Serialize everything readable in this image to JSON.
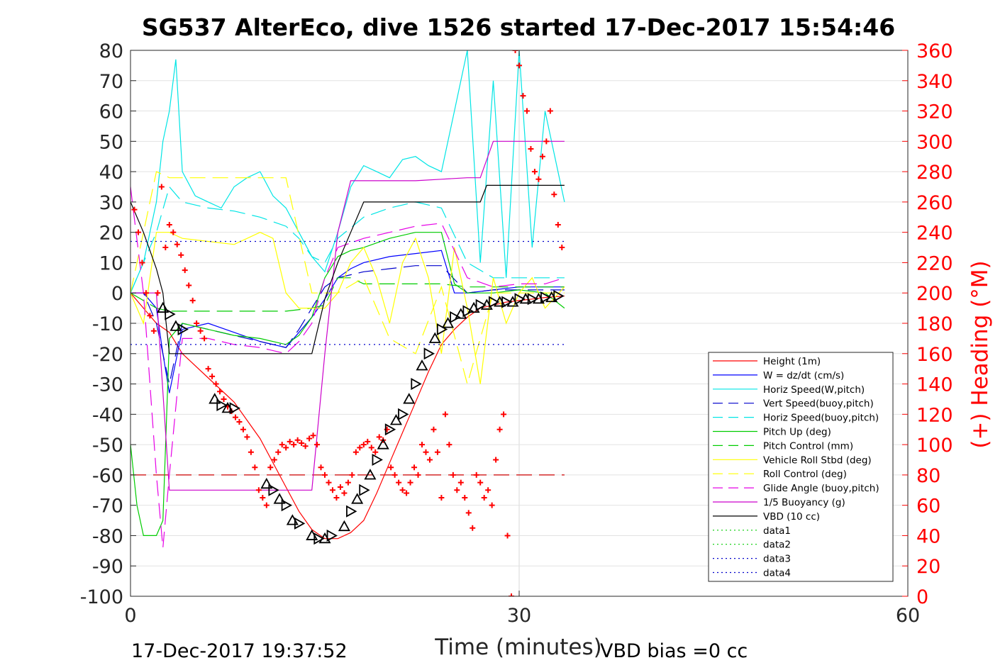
{
  "chart_data": {
    "type": "line",
    "title": "SG537 AlterEco, dive 1526 started 17-Dec-2017 15:54:46",
    "xlabel": "Time (minutes)",
    "ylabel_right": "(+) Heading (°M)",
    "xlim": [
      0,
      60
    ],
    "ylim": [
      -100,
      80
    ],
    "ylim_right": [
      0,
      360
    ],
    "x_ticks": [
      "0",
      "30",
      "60"
    ],
    "y_ticks": [
      "80",
      "70",
      "60",
      "50",
      "40",
      "30",
      "20",
      "10",
      "0",
      "-10",
      "-20",
      "-30",
      "-40",
      "-50",
      "-60",
      "-70",
      "-80",
      "-90",
      "-100"
    ],
    "y_ticks_right": [
      "360",
      "340",
      "320",
      "300",
      "280",
      "260",
      "240",
      "220",
      "200",
      "180",
      "160",
      "140",
      "120",
      "100",
      "80",
      "60",
      "40",
      "20",
      "0"
    ],
    "grid": true,
    "legend_position": "lower-right",
    "footer_left": "17-Dec-2017 19:37:52",
    "footer_right": "VBD bias =0 cc",
    "series": [
      {
        "name": "Height (1m)",
        "color": "#ff0000",
        "dash": "solid",
        "x": [
          0,
          1,
          2,
          3,
          4,
          6,
          8,
          10,
          12,
          13,
          14,
          15,
          16,
          17,
          18,
          19,
          20,
          21,
          22,
          23,
          24,
          25,
          26,
          27,
          28,
          29,
          30,
          31,
          32,
          33.5
        ],
        "values": [
          0,
          -5,
          -10,
          -13,
          -20,
          -28,
          -36,
          -48,
          -64,
          -72,
          -78,
          -81,
          -81,
          -79,
          -75,
          -66,
          -56,
          -46,
          -36,
          -26,
          -17,
          -12,
          -8,
          -5,
          -4,
          -3,
          -2.5,
          -2,
          -1.5,
          -1
        ]
      },
      {
        "name": "W = dz/dt (cm/s)",
        "color": "#0000ff",
        "dash": "solid",
        "x": [
          0,
          1,
          2,
          2.5,
          3,
          4,
          6,
          8,
          10,
          12,
          13,
          14,
          15,
          16,
          17,
          18,
          20,
          22,
          24,
          25,
          26,
          28,
          30,
          32,
          33.5
        ],
        "values": [
          0,
          0,
          -5,
          -20,
          -33,
          -12,
          -10,
          -13,
          -16,
          -18,
          -13,
          -8,
          -2,
          5,
          8,
          10,
          12,
          13,
          14,
          0,
          0,
          1,
          2,
          2,
          2
        ]
      },
      {
        "name": "Horiz Speed(W,pitch)",
        "color": "#00e5e5",
        "dash": "solid",
        "x": [
          0,
          1,
          2,
          2.5,
          3,
          3.5,
          4,
          5,
          6,
          7,
          8,
          9,
          10,
          11,
          12,
          13,
          14,
          15,
          16,
          17,
          18,
          19,
          20,
          21,
          22,
          23,
          24,
          25,
          26,
          27,
          28,
          29,
          30,
          31,
          32,
          33.5
        ],
        "values": [
          0,
          10,
          30,
          50,
          60,
          77,
          40,
          32,
          30,
          28,
          35,
          38,
          40,
          32,
          28,
          20,
          12,
          7,
          20,
          35,
          42,
          40,
          38,
          44,
          45,
          42,
          40,
          60,
          80,
          10,
          70,
          5,
          80,
          15,
          60,
          30
        ]
      },
      {
        "name": "Vert Speed(buoy,pitch)",
        "color": "#0000cc",
        "dash": "dashed",
        "x": [
          0,
          1,
          2,
          3,
          4,
          6,
          8,
          10,
          12,
          13,
          14,
          15,
          16,
          18,
          20,
          22,
          24,
          26,
          28,
          30,
          32,
          33.5
        ],
        "values": [
          0,
          0,
          -10,
          -30,
          -10,
          -12,
          -14,
          -16,
          -18,
          -12,
          -5,
          2,
          5,
          7,
          8,
          9,
          9,
          0,
          1,
          1,
          1,
          1
        ]
      },
      {
        "name": "Horiz Speed(buoy,pitch)",
        "color": "#00e5e5",
        "dash": "dashed",
        "x": [
          0,
          2,
          3,
          4,
          6,
          8,
          10,
          12,
          13,
          14,
          15,
          16,
          18,
          20,
          22,
          24,
          26,
          28,
          30,
          32,
          33.5
        ],
        "values": [
          0,
          20,
          35,
          30,
          28,
          27,
          25,
          22,
          18,
          12,
          10,
          18,
          25,
          28,
          30,
          28,
          10,
          5,
          5,
          5,
          5
        ]
      },
      {
        "name": "Pitch Up (deg)",
        "color": "#00cc00",
        "dash": "solid",
        "x": [
          0,
          0.5,
          1,
          2,
          2.5,
          3,
          4,
          6,
          8,
          10,
          12,
          13,
          14,
          15,
          16,
          17,
          18,
          20,
          22,
          24,
          25,
          26,
          28,
          30,
          32,
          33.5
        ],
        "values": [
          -50,
          -70,
          -80,
          -80,
          -75,
          -15,
          -10,
          -12,
          -14,
          -15,
          -17,
          -14,
          -8,
          5,
          12,
          14,
          15,
          18,
          20,
          20,
          3,
          0,
          0,
          1,
          0,
          -5
        ]
      },
      {
        "name": "Pitch Control (mm)",
        "color": "#00cc00",
        "dash": "dashed",
        "x": [
          0,
          2,
          3,
          4,
          6,
          8,
          10,
          12,
          14,
          15,
          16,
          17,
          18,
          20,
          22,
          24,
          26,
          28,
          30,
          32,
          33.5
        ],
        "values": [
          0,
          -5,
          -6,
          -6,
          -6,
          -6,
          -6,
          -6,
          -5,
          -4,
          5,
          5,
          3,
          3,
          3,
          3,
          2,
          2,
          2,
          2,
          2
        ]
      },
      {
        "name": "Vehicle Roll Stbd (deg)",
        "color": "#ffff00",
        "dash": "solid",
        "x": [
          0,
          1,
          2,
          3,
          4,
          6,
          8,
          10,
          11,
          12,
          13,
          14,
          15,
          16,
          17,
          18,
          19,
          20,
          21,
          22,
          23,
          24,
          25,
          26,
          27,
          28,
          29,
          30,
          31,
          32,
          33.5
        ],
        "values": [
          0,
          -10,
          20,
          20,
          18,
          17,
          16,
          20,
          18,
          0,
          -5,
          -5,
          -5,
          0,
          10,
          15,
          5,
          -10,
          10,
          18,
          5,
          -20,
          15,
          -5,
          -30,
          5,
          -10,
          0,
          5,
          -5,
          2
        ]
      },
      {
        "name": "Roll Control (deg)",
        "color": "#ffff00",
        "dash": "dashed",
        "x": [
          0,
          1,
          2,
          3,
          4,
          6,
          8,
          10,
          12,
          14,
          16,
          18,
          20,
          22,
          24,
          26,
          28,
          30,
          32,
          33.5
        ],
        "values": [
          0,
          20,
          40,
          38,
          38,
          38,
          38,
          38,
          38,
          0,
          0,
          5,
          -15,
          -20,
          2,
          -30,
          0,
          0,
          0,
          0
        ]
      },
      {
        "name": "Glide Angle (buoy,pitch)",
        "color": "#e600e6",
        "dash": "dashed",
        "x": [
          0,
          1,
          2,
          2.5,
          3,
          4,
          6,
          8,
          10,
          12,
          13,
          14,
          15,
          16,
          18,
          20,
          22,
          24,
          26,
          28,
          30,
          32,
          33.5
        ],
        "values": [
          35,
          0,
          -60,
          -84,
          -60,
          -15,
          -15,
          -17,
          -18,
          -20,
          -16,
          -10,
          5,
          15,
          18,
          20,
          22,
          23,
          5,
          2,
          3,
          3,
          5
        ]
      },
      {
        "name": "1/5 Buoyancy (g)",
        "color": "#cc00cc",
        "dash": "solid",
        "x": [
          0,
          2,
          3,
          4,
          6,
          8,
          10,
          12,
          14,
          15,
          16,
          17,
          18,
          20,
          22,
          24,
          26,
          27,
          28,
          30,
          32,
          33.5
        ],
        "values": [
          0,
          0,
          -65,
          -65,
          -65,
          -65,
          -65,
          -65,
          -65,
          -20,
          20,
          37,
          37,
          37,
          37,
          37.5,
          38,
          38,
          50,
          50,
          50,
          50
        ]
      },
      {
        "name": "VBD (10 cc)",
        "color": "#000000",
        "dash": "solid",
        "x": [
          0,
          1,
          2,
          2.5,
          3,
          4,
          6,
          8,
          10,
          12,
          13,
          14,
          15,
          16,
          17,
          18,
          20,
          22,
          24,
          26,
          27,
          27.5,
          28,
          30,
          32,
          33.5
        ],
        "values": [
          30,
          20,
          8,
          0,
          -20,
          -20,
          -20,
          -20,
          -20,
          -20,
          -20,
          -20,
          -2,
          10,
          20,
          30,
          30,
          30,
          30,
          30,
          30,
          35.5,
          35.5,
          35.5,
          35.5,
          35.5
        ]
      },
      {
        "name": "data1",
        "color": "#00cc00",
        "dash": "dotted",
        "x": [],
        "values": []
      },
      {
        "name": "data2",
        "color": "#00cc00",
        "dash": "dotted",
        "x": [],
        "values": []
      },
      {
        "name": "data3",
        "color": "#0000cc",
        "dash": "dotted",
        "x": [
          0,
          33.5
        ],
        "values": [
          -17,
          -17
        ]
      },
      {
        "name": "data4",
        "color": "#0000cc",
        "dash": "dotted",
        "x": [
          0,
          33.5
        ],
        "values": [
          17,
          17
        ]
      }
    ],
    "reference_line": {
      "color": "#cc0000",
      "dash": "dashed",
      "x": [
        0,
        33.5
      ],
      "values": [
        -60,
        -60
      ]
    },
    "heading_points": {
      "color": "#ff0000",
      "marker": "+",
      "axis": "right",
      "x": [
        0.3,
        0.6,
        0.9,
        1.2,
        1.5,
        1.8,
        2.1,
        2.4,
        2.7,
        3.0,
        3.3,
        3.6,
        3.9,
        4.2,
        4.5,
        4.8,
        5.1,
        5.4,
        5.7,
        6.0,
        6.3,
        6.6,
        6.9,
        7.2,
        7.5,
        7.8,
        8.1,
        8.4,
        8.7,
        9.0,
        9.3,
        9.6,
        9.9,
        10.2,
        10.5,
        10.8,
        11.1,
        11.4,
        11.7,
        12.0,
        12.3,
        12.6,
        12.9,
        13.2,
        13.5,
        13.8,
        14.1,
        14.4,
        14.7,
        15.0,
        15.3,
        15.6,
        15.9,
        16.2,
        16.5,
        16.8,
        17.1,
        17.4,
        17.7,
        18.0,
        18.3,
        18.6,
        18.9,
        19.2,
        19.5,
        19.8,
        20.1,
        20.4,
        20.7,
        21.0,
        21.3,
        21.6,
        21.9,
        22.2,
        22.5,
        22.8,
        23.1,
        23.4,
        23.7,
        24.0,
        24.3,
        24.6,
        24.9,
        25.2,
        25.5,
        25.8,
        26.1,
        26.4,
        26.7,
        27.0,
        27.3,
        27.6,
        27.9,
        28.2,
        28.5,
        28.8,
        29.1,
        29.4,
        29.7,
        30.0,
        30.3,
        30.6,
        30.9,
        31.2,
        31.5,
        31.8,
        32.1,
        32.4,
        32.7,
        33.0,
        33.3
      ],
      "values": [
        255,
        240,
        220,
        200,
        185,
        175,
        200,
        270,
        230,
        245,
        240,
        232,
        225,
        215,
        205,
        195,
        180,
        175,
        170,
        150,
        145,
        140,
        135,
        130,
        125,
        122,
        118,
        115,
        110,
        105,
        95,
        85,
        70,
        65,
        60,
        85,
        90,
        95,
        100,
        98,
        102,
        100,
        103,
        101,
        99,
        104,
        106,
        100,
        85,
        80,
        75,
        70,
        65,
        72,
        68,
        75,
        80,
        95,
        98,
        100,
        102,
        98,
        95,
        105,
        103,
        110,
        85,
        80,
        75,
        70,
        68,
        75,
        85,
        80,
        100,
        95,
        90,
        110,
        95,
        65,
        120,
        100,
        80,
        70,
        75,
        65,
        55,
        45,
        80,
        75,
        65,
        70,
        60,
        90,
        110,
        120,
        40,
        0,
        360,
        350,
        330,
        320,
        295,
        280,
        275,
        290,
        300,
        320,
        265,
        245,
        230
      ]
    },
    "vbd_markers": {
      "color": "#000000",
      "marker": "triangle",
      "x": [
        2.5,
        3.0,
        3.5,
        4.0,
        6.5,
        7.0,
        7.5,
        8.0,
        10.5,
        11.0,
        11.5,
        12.0,
        12.5,
        13.0,
        14.0,
        14.5,
        15.0,
        15.5,
        16.5,
        17.0,
        17.5,
        18.0,
        18.5,
        19.0,
        19.5,
        20.0,
        20.5,
        21.0,
        21.5,
        22.0,
        22.5,
        23.0,
        23.5,
        24.0,
        24.5,
        25.0,
        25.5,
        26.0,
        26.5,
        27.0,
        27.5,
        28.0,
        28.5,
        29.0,
        29.5,
        30.0,
        30.5,
        31.0,
        31.5,
        32.0,
        32.5,
        33.0
      ],
      "values": [
        -5,
        -7,
        -11,
        -12,
        -35,
        -37,
        -38,
        -38,
        -63,
        -65,
        -68,
        -70,
        -75,
        -76,
        -80,
        -81,
        -81,
        -80,
        -77,
        -72,
        -68,
        -65,
        -60,
        -55,
        -50,
        -45,
        -42,
        -40,
        -35,
        -30,
        -24,
        -20,
        -15,
        -12,
        -10,
        -8,
        -7,
        -6,
        -5,
        -4,
        -4,
        -3,
        -3,
        -3,
        -3,
        -2,
        -2,
        -2,
        -2,
        -1.5,
        -1.5,
        -1
      ]
    }
  }
}
